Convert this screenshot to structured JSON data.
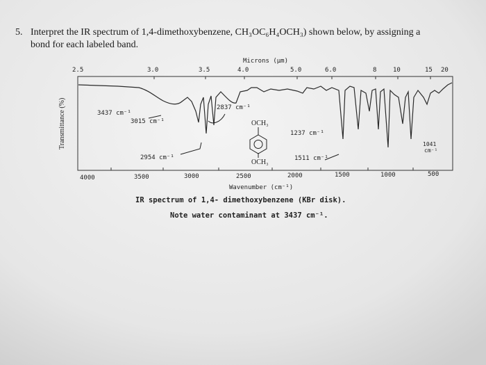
{
  "question": {
    "number": "5.",
    "lines": [
      "Interpret the IR spectrum of 1,4-dimethoxybenzene, CH₃OC₆H₄OCH₃) shown below, by assigning a",
      "bond for each labeled band."
    ]
  },
  "figure": {
    "top_axis_title": "Microns (μm)",
    "top_ticks": [
      "2.5",
      "3.0",
      "3.5",
      "4.0",
      "5.0",
      "6.0",
      "8",
      "10",
      "15",
      "20"
    ],
    "y_axis_title": "Transmittance (%)",
    "bottom_ticks": [
      "4000",
      "3500",
      "3000",
      "2500",
      "2000",
      "1500",
      "1000",
      "500"
    ],
    "bottom_axis_title": "Wavenumber (cm⁻¹)",
    "annotations": [
      "3437 cm⁻¹",
      "3015 cm⁻¹",
      "2954 cm⁻¹",
      "2837 cm⁻¹",
      "1237 cm⁻¹",
      "1511 cm⁻¹"
    ],
    "band_1041": {
      "value": "1041",
      "unit": "cm⁻¹"
    },
    "substituents": [
      "OCH₃",
      "OCH₃"
    ],
    "caption": "IR spectrum of 1,4- dimethoxybenzene (KBr disk).",
    "note": "Note water contaminant at 3437 cm⁻¹."
  }
}
